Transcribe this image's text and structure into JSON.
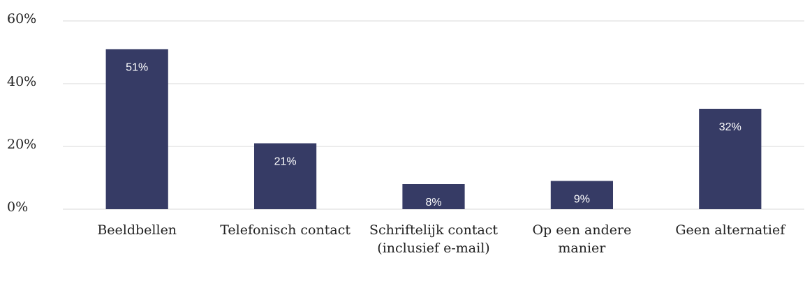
{
  "chart_data": {
    "type": "bar",
    "categories": [
      "Beeldbellen",
      "Telefonisch contact",
      "Schriftelijk contact (inclusief e-mail)",
      "Op een andere manier",
      "Geen alternatief"
    ],
    "values": [
      51,
      21,
      8,
      9,
      32
    ],
    "value_labels": [
      "51%",
      "21%",
      "8%",
      "9%",
      "32%"
    ],
    "color": "#363b65",
    "ylim": [
      0,
      60
    ],
    "yticks": [
      {
        "value": 0,
        "label": "0%"
      },
      {
        "value": 20,
        "label": "20%"
      },
      {
        "value": 40,
        "label": "40%"
      },
      {
        "value": 60,
        "label": "60%"
      }
    ],
    "grid": true
  }
}
